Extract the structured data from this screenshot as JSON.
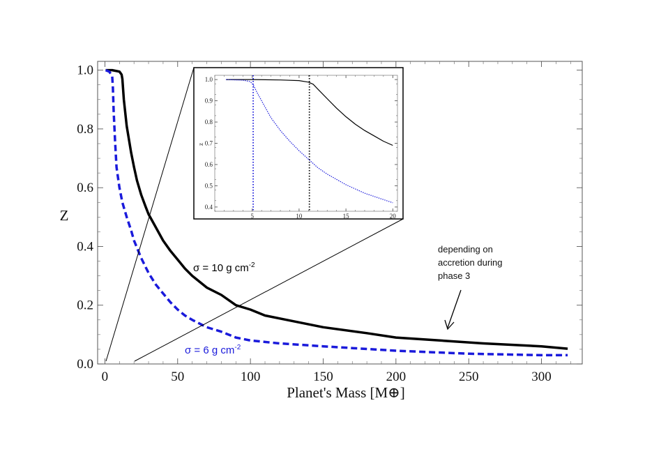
{
  "chart_data": [
    {
      "type": "line",
      "xlabel": "Planet's Mass [M⊕]",
      "ylabel": "Z",
      "xlim": [
        -5,
        328
      ],
      "ylim": [
        0,
        1.03
      ],
      "xticks": [
        0,
        50,
        100,
        150,
        200,
        250,
        300
      ],
      "yticks": [
        0.0,
        0.2,
        0.4,
        0.6,
        0.8,
        1.0
      ],
      "xtick_labels": [
        "0",
        "50",
        "100",
        "150",
        "200",
        "250",
        "300"
      ],
      "ytick_labels": [
        "0.0",
        "0.2",
        "0.4",
        "0.6",
        "0.8",
        "1.0"
      ],
      "grid": false,
      "series": [
        {
          "name": "σ = 10 g cm-2",
          "color": "#000000",
          "style": "solid",
          "x": [
            0.5,
            5,
            10,
            11.5,
            12,
            13,
            15,
            18,
            20,
            22,
            25,
            28,
            30,
            35,
            40,
            45,
            50,
            55,
            60,
            65,
            70,
            80,
            90,
            100,
            110,
            125,
            150,
            180,
            200,
            230,
            260,
            300,
            318
          ],
          "y": [
            1.0,
            1.0,
            0.995,
            0.985,
            0.97,
            0.9,
            0.81,
            0.72,
            0.67,
            0.625,
            0.575,
            0.535,
            0.51,
            0.465,
            0.42,
            0.385,
            0.355,
            0.325,
            0.3,
            0.28,
            0.26,
            0.235,
            0.2,
            0.185,
            0.165,
            0.15,
            0.125,
            0.105,
            0.09,
            0.08,
            0.07,
            0.06,
            0.052
          ]
        },
        {
          "name": "σ = 6 g cm-2",
          "color": "#1a1adb",
          "style": "dashed",
          "x": [
            0.5,
            3,
            5,
            5.5,
            6,
            7,
            8,
            10,
            12,
            15,
            18,
            20,
            25,
            30,
            35,
            40,
            45,
            50,
            55,
            60,
            70,
            80,
            90,
            100,
            120,
            150,
            200,
            250,
            300,
            318
          ],
          "y": [
            1.0,
            0.995,
            0.98,
            0.94,
            0.86,
            0.76,
            0.67,
            0.6,
            0.55,
            0.5,
            0.455,
            0.42,
            0.36,
            0.31,
            0.27,
            0.24,
            0.21,
            0.185,
            0.165,
            0.15,
            0.125,
            0.11,
            0.09,
            0.08,
            0.07,
            0.06,
            0.045,
            0.035,
            0.03,
            0.03
          ]
        }
      ],
      "annotations": {
        "sigma10": "σ = 10 g cm",
        "sigma6": "σ = 6 g cm",
        "exponent": "-2",
        "note_lines": [
          "depending on",
          "accretion during",
          "phase 3"
        ]
      }
    },
    {
      "type": "line",
      "ylabel": "z",
      "xlim": [
        1,
        20.5
      ],
      "ylim": [
        0.38,
        1.02
      ],
      "xticks": [
        5,
        10,
        15,
        20
      ],
      "yticks": [
        0.4,
        0.5,
        0.6,
        0.7,
        0.8,
        0.9,
        1.0
      ],
      "xtick_labels": [
        "5",
        "10",
        "15",
        "20"
      ],
      "ytick_labels": [
        "0.4",
        "0.5",
        "0.6",
        "0.7",
        "0.8",
        "0.9",
        "1.0"
      ],
      "vlines": [
        {
          "x": 5.1,
          "color": "#1a1adb"
        },
        {
          "x": 11.1,
          "color": "#000000"
        }
      ],
      "series": [
        {
          "color": "#000000",
          "style": "solid",
          "x": [
            2.2,
            5,
            8,
            10,
            11,
            11.5,
            12,
            13,
            14,
            15,
            16,
            17,
            18,
            19,
            20
          ],
          "y": [
            1.0,
            1.0,
            0.998,
            0.995,
            0.988,
            0.978,
            0.955,
            0.91,
            0.865,
            0.825,
            0.79,
            0.76,
            0.735,
            0.71,
            0.69
          ]
        },
        {
          "color": "#1a1adb",
          "style": "dotted",
          "x": [
            2.2,
            4,
            4.8,
            5.1,
            5.5,
            6,
            7,
            8,
            9,
            10,
            11,
            12,
            13,
            14,
            15,
            16,
            17,
            18,
            19,
            20
          ],
          "y": [
            1.0,
            0.997,
            0.99,
            0.975,
            0.94,
            0.9,
            0.82,
            0.76,
            0.71,
            0.665,
            0.625,
            0.585,
            0.555,
            0.53,
            0.505,
            0.485,
            0.465,
            0.45,
            0.435,
            0.42
          ]
        }
      ]
    }
  ]
}
